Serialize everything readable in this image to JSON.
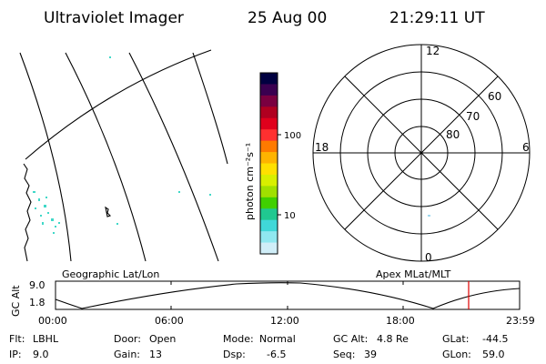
{
  "header": {
    "instrument": "Ultraviolet Imager",
    "date": "25 Aug 00",
    "time": "21:29:11 UT"
  },
  "colorbar": {
    "label": "photon cm⁻²s⁻¹",
    "ticks": [
      "100",
      "10"
    ],
    "colors": [
      "#000040",
      "#3a0050",
      "#7a0040",
      "#b00020",
      "#e0001c",
      "#ff3030",
      "#ff7a00",
      "#ffb400",
      "#ffe000",
      "#d8ef00",
      "#a0e000",
      "#40d000",
      "#20c890",
      "#40d8d8",
      "#90e8f0",
      "#d0eef8"
    ]
  },
  "polar_plot": {
    "mlt_labels": {
      "top": "12",
      "left": "18",
      "right": "6",
      "bottom": "0"
    },
    "lat_labels": [
      "60",
      "70",
      "80"
    ]
  },
  "panel_labels": {
    "geographic": "Geographic Lat/Lon",
    "apex": "Apex MLat/MLT"
  },
  "alt_plot": {
    "ylabel": "GC Alt",
    "yticks": [
      "9.0",
      "1.8"
    ],
    "xticks": [
      "00:00",
      "06:00",
      "12:00",
      "18:00",
      "23:59"
    ],
    "current_marker_color": "#e00000"
  },
  "footer": {
    "filter_label": "Flt:",
    "filter_value": "LBHL",
    "ip_label": "IP:",
    "ip_value": "9.0",
    "door_label": "Door:",
    "door_value": "Open",
    "gain_label": "Gain:",
    "gain_value": "13",
    "mode_label": "Mode:",
    "mode_value": "Normal",
    "dsp_label": "Dsp:",
    "dsp_value": "-6.5",
    "gcalt_label": "GC Alt:",
    "gcalt_value": "4.8 Re",
    "seq_label": "Seq:",
    "seq_value": "39",
    "glat_label": "GLat:",
    "glat_value": "-44.5",
    "glon_label": "GLon:",
    "glon_value": "59.0"
  }
}
